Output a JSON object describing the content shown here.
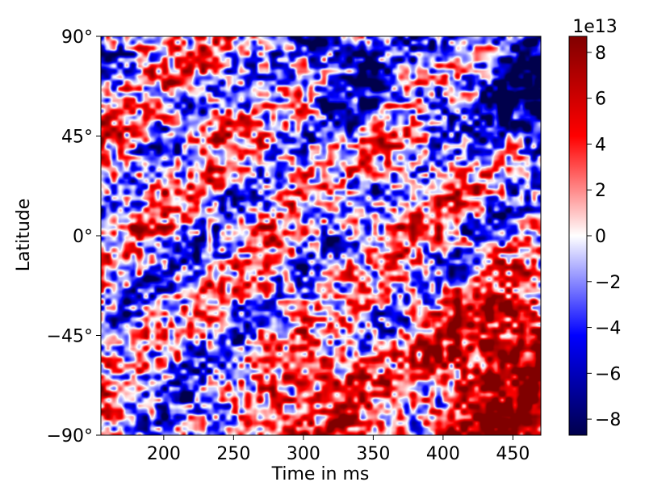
{
  "chart_data": {
    "type": "heatmap",
    "title": "",
    "xlabel": "Time in ms",
    "ylabel": "Latitude",
    "xlim": [
      155,
      470
    ],
    "ylim": [
      -90,
      90
    ],
    "x_ticks": [
      200,
      250,
      300,
      350,
      400,
      450
    ],
    "y_ticks": [
      {
        "value": 90,
        "label": "90°"
      },
      {
        "value": 45,
        "label": "45°"
      },
      {
        "value": 0,
        "label": "0°"
      },
      {
        "value": -45,
        "label": "−45°"
      },
      {
        "value": -90,
        "label": "−90°"
      }
    ],
    "colorbar": {
      "colormap": "seismic",
      "range": [
        -8.7,
        8.7
      ],
      "ticks": [
        -8,
        -6,
        -4,
        -2,
        0,
        2,
        4,
        6,
        8
      ],
      "tick_labels": [
        "−8",
        "−6",
        "−4",
        "−2",
        "0",
        "2",
        "4",
        "6",
        "8"
      ],
      "offset_label": "1e13",
      "colors": [
        "#00004c",
        "#0000ff",
        "#ffffff",
        "#ff0000",
        "#800000"
      ]
    },
    "pattern": {
      "regions": [
        {
          "description": "upper-right strong negative",
          "x": [
            380,
            470
          ],
          "lat": [
            20,
            90
          ],
          "value": -8
        },
        {
          "description": "lower-right strong positive",
          "x": [
            380,
            470
          ],
          "lat": [
            -90,
            -20
          ],
          "value": 8
        },
        {
          "description": "lower-middle positive",
          "x": [
            260,
            380
          ],
          "lat": [
            -90,
            -40
          ],
          "value": 5
        },
        {
          "description": "upper-middle negative",
          "x": [
            300,
            380
          ],
          "lat": [
            50,
            90
          ],
          "value": -5
        },
        {
          "description": "lower-left negative streak",
          "x": [
            175,
            250
          ],
          "lat": [
            -90,
            -60
          ],
          "value": -6
        }
      ],
      "note_noise": "fine-scale alternating positive/negative texture across domain"
    }
  }
}
